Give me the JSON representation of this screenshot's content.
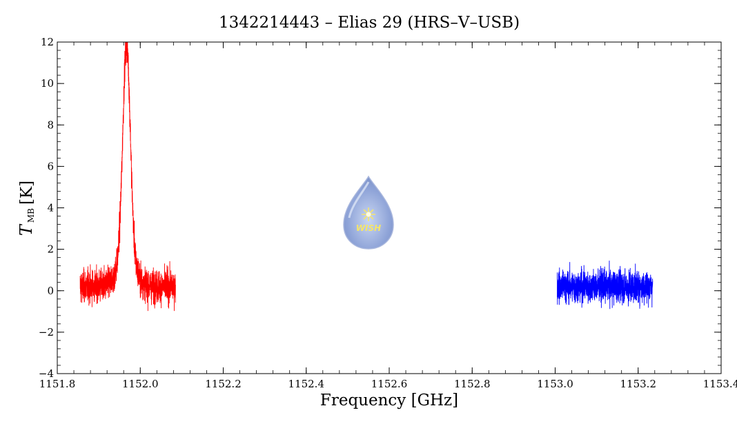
{
  "chart_data": {
    "type": "line",
    "title": "1342214443 – Elias 29 (HRS–V–USB)",
    "xlabel": "Frequency [GHz]",
    "ylabel": {
      "main": "T",
      "sub": "MB",
      "unit": "[K]"
    },
    "xlim": [
      1151.8,
      1153.4
    ],
    "ylim": [
      -4,
      12
    ],
    "x_ticks": [
      "1151.8",
      "1152.0",
      "1152.2",
      "1152.4",
      "1152.6",
      "1152.8",
      "1153.0",
      "1153.2",
      "1153.4"
    ],
    "y_ticks": [
      "−4",
      "−2",
      "0",
      "2",
      "4",
      "6",
      "8",
      "10",
      "12"
    ],
    "grid": false,
    "series": [
      {
        "color": "#ff0000",
        "x_range": [
          1151.855,
          1152.085
        ],
        "baseline": 0.2,
        "noise": 0.55,
        "peak": {
          "center": 1151.967,
          "height": 10.2,
          "width": 0.009,
          "wing_height": 1.5,
          "wing_width": 0.02
        }
      },
      {
        "color": "#0000ff",
        "x_range": [
          1153.005,
          1153.235
        ],
        "baseline": 0.2,
        "noise": 0.55,
        "peak": null
      }
    ],
    "logo": {
      "text": "WISH"
    }
  }
}
